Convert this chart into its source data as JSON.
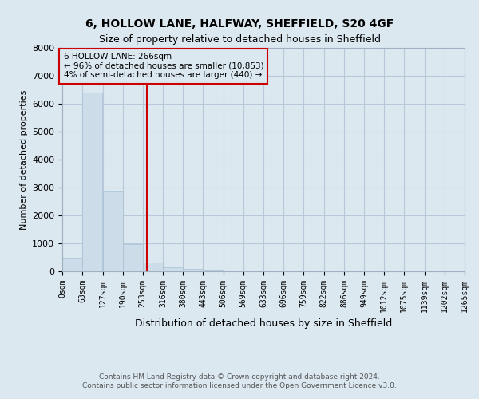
{
  "title": "6, HOLLOW LANE, HALFWAY, SHEFFIELD, S20 4GF",
  "subtitle": "Size of property relative to detached houses in Sheffield",
  "xlabel": "Distribution of detached houses by size in Sheffield",
  "ylabel": "Number of detached properties",
  "annotation_line1": "6 HOLLOW LANE: 266sqm",
  "annotation_line2": "← 96% of detached houses are smaller (10,853)",
  "annotation_line3": "4% of semi-detached houses are larger (440) →",
  "footer1": "Contains HM Land Registry data © Crown copyright and database right 2024.",
  "footer2": "Contains public sector information licensed under the Open Government Licence v3.0.",
  "property_size": 266,
  "bin_edges": [
    0,
    63,
    127,
    190,
    253,
    316,
    380,
    443,
    506,
    569,
    633,
    696,
    759,
    822,
    886,
    949,
    1012,
    1075,
    1139,
    1202,
    1265
  ],
  "bar_heights": [
    490,
    6400,
    2900,
    980,
    310,
    145,
    90,
    45,
    0,
    0,
    0,
    0,
    0,
    0,
    0,
    0,
    0,
    0,
    0,
    0
  ],
  "bar_color": "#ccdce8",
  "bar_edge_color": "#a8c0d4",
  "vline_color": "#cc0000",
  "annotation_box_color": "#cc0000",
  "grid_color": "#b8c8d8",
  "background_color": "#dce8f0",
  "ylim": [
    0,
    8000
  ],
  "yticks": [
    0,
    1000,
    2000,
    3000,
    4000,
    5000,
    6000,
    7000,
    8000
  ],
  "title_fontsize": 10,
  "subtitle_fontsize": 9,
  "xlabel_fontsize": 9,
  "ylabel_fontsize": 8,
  "tick_fontsize": 7,
  "footer_fontsize": 6.5,
  "ann_fontsize": 7.5
}
